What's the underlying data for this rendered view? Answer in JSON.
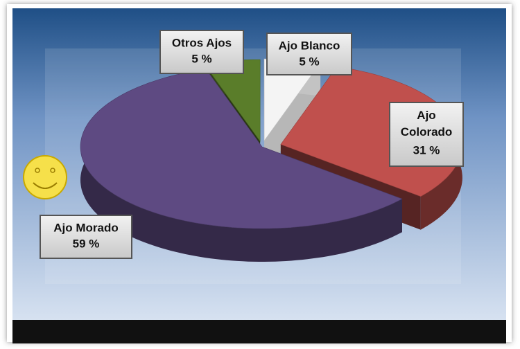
{
  "chart_data": {
    "type": "pie",
    "categories": [
      "Ajo Blanco",
      "Ajo Colorado",
      "Ajo Morado",
      "Otros Ajos"
    ],
    "values": [
      5,
      31,
      59,
      5
    ],
    "value_labels": [
      "5 %",
      "31 %",
      "59 %",
      "5 %"
    ],
    "colors": [
      "#f4f4f4",
      "#c0504d",
      "#5e4a82",
      "#5a7d2a"
    ]
  }
}
